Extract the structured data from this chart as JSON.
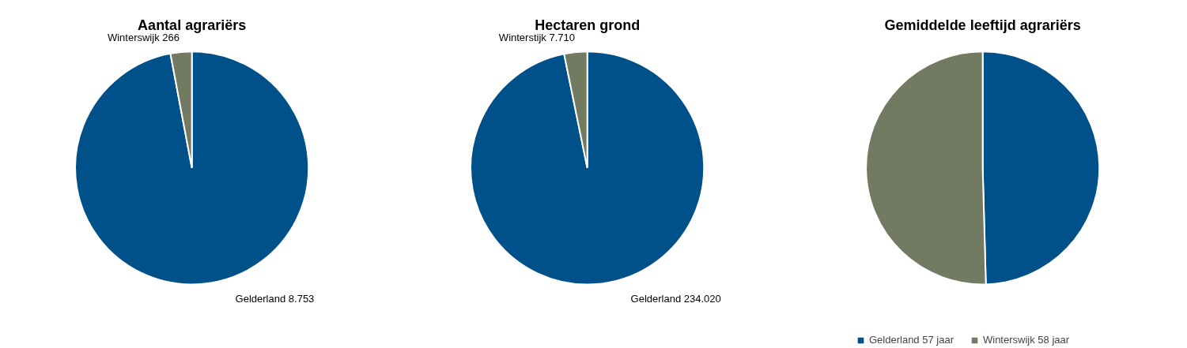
{
  "chart_data": [
    {
      "type": "pie",
      "title": "Aantal agrariërs",
      "categories": [
        "Gelderland",
        "Winterswijk"
      ],
      "values": [
        8753,
        266
      ],
      "colors": [
        "#00508a",
        "#727b62"
      ],
      "value_labels": [
        "8.753",
        "266"
      ],
      "legend": false
    },
    {
      "type": "pie",
      "title": "Hectaren grond",
      "categories": [
        "Gelderland",
        "Winterstijk"
      ],
      "values": [
        234020,
        7710
      ],
      "colors": [
        "#00508a",
        "#727b62"
      ],
      "value_labels": [
        "234.020",
        "7.710"
      ],
      "legend": false
    },
    {
      "type": "pie",
      "title": "Gemiddelde leeftijd agrariërs",
      "categories": [
        "Gelderland 57 jaar",
        "Winterswijk 58 jaar"
      ],
      "values": [
        57,
        58
      ],
      "colors": [
        "#00508a",
        "#727b62"
      ],
      "legend": "bottom"
    }
  ]
}
